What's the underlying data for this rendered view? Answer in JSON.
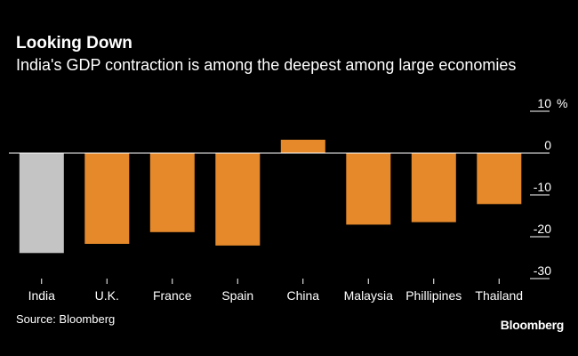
{
  "chart_data": {
    "type": "bar",
    "title": "Looking Down",
    "subtitle": "India's GDP contraction is among the deepest among large economies",
    "categories": [
      "India",
      "U.K.",
      "France",
      "Spain",
      "China",
      "Malaysia",
      "Phillipines",
      "Thailand"
    ],
    "values": [
      -23.9,
      -21.7,
      -18.9,
      -22.1,
      3.2,
      -17.1,
      -16.5,
      -12.2
    ],
    "highlight": "India",
    "ylim": [
      -30,
      10
    ],
    "yticks": [
      10,
      0,
      -10,
      -20,
      -30
    ],
    "ytick_labels": [
      "10",
      "0",
      "-10",
      "-20",
      "-30"
    ],
    "yunit": "%",
    "xlabel": "",
    "ylabel": "",
    "grid": false,
    "source": "Source: Bloomberg",
    "brand": "Bloomberg"
  },
  "colors": {
    "background": "#000000",
    "bar": "#e5892a",
    "highlight_bar": "#c4c4c4",
    "text": "#ffffff",
    "axis": "#ffffff"
  }
}
